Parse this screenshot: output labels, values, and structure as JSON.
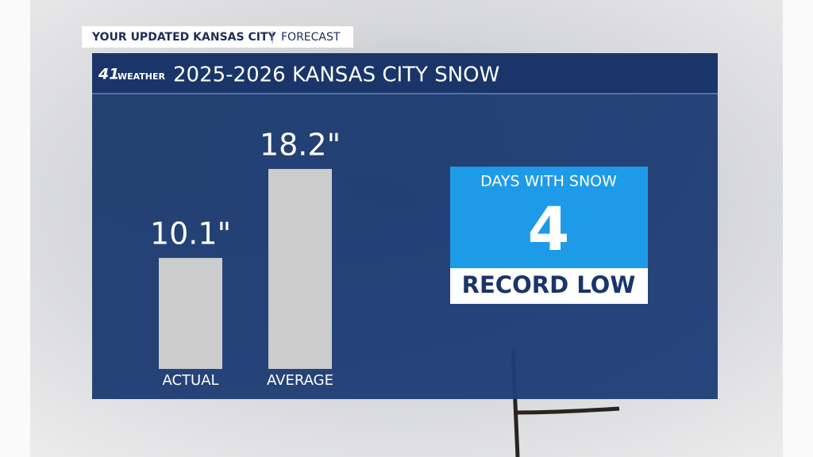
{
  "header": {
    "title": "YOUR UPDATED KANSAS CITY",
    "section": "FORECAST"
  },
  "logo": {
    "number": "41",
    "text": "WEATHER"
  },
  "chart_data": {
    "type": "bar",
    "title": "2025-2026 KANSAS CITY SNOW",
    "categories": [
      "ACTUAL",
      "AVERAGE"
    ],
    "values": [
      10.1,
      18.2
    ],
    "value_labels": [
      "10.1\"",
      "18.2\""
    ],
    "color": "#cbcccb"
  },
  "stat": {
    "label": "DAYS WITH SNOW",
    "value": 4,
    "note": "RECORD LOW"
  }
}
